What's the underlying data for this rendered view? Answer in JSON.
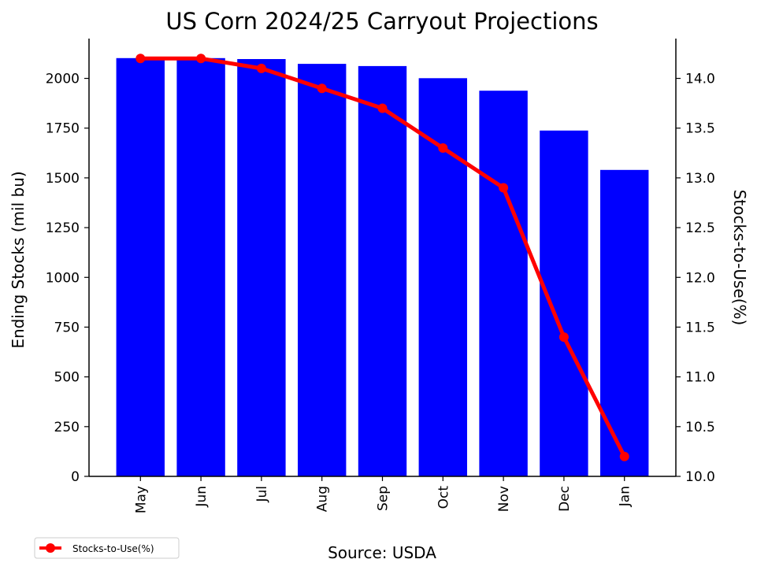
{
  "chart_data": {
    "type": "bar",
    "title": "US Corn 2024/25 Carryout Projections",
    "categories": [
      "May",
      "Jun",
      "Jul",
      "Aug",
      "Sep",
      "Oct",
      "Nov",
      "Dec",
      "Jan"
    ],
    "series": [
      {
        "axis": "left",
        "type": "bar",
        "values": [
          2102,
          2102,
          2097,
          2073,
          2062,
          2001,
          1938,
          1738,
          1540
        ],
        "color": "#0000ff"
      },
      {
        "name": "Stocks-to-Use(%)",
        "axis": "right",
        "type": "line",
        "values": [
          14.2,
          14.2,
          14.1,
          13.9,
          13.7,
          13.3,
          12.9,
          11.4,
          10.2
        ],
        "color": "#ff0000",
        "marker": "circle"
      }
    ],
    "ylabel": "Ending Stocks (mil bu)",
    "ylabel_right": "Stocks-to-Use(%)",
    "ylim": [
      0,
      2200
    ],
    "ylim_right": [
      10.0,
      14.4
    ],
    "yticks": [
      "0",
      "250",
      "500",
      "750",
      "1000",
      "1250",
      "1500",
      "1750",
      "2000"
    ],
    "yticks_right": [
      "10.0",
      "10.5",
      "11.0",
      "11.5",
      "12.0",
      "12.5",
      "13.0",
      "13.5",
      "14.0"
    ],
    "xlabel": "Source: USDA",
    "legend": {
      "position": "bottom-left",
      "entries": [
        "Stocks-to-Use(%)"
      ]
    },
    "grid": false
  }
}
